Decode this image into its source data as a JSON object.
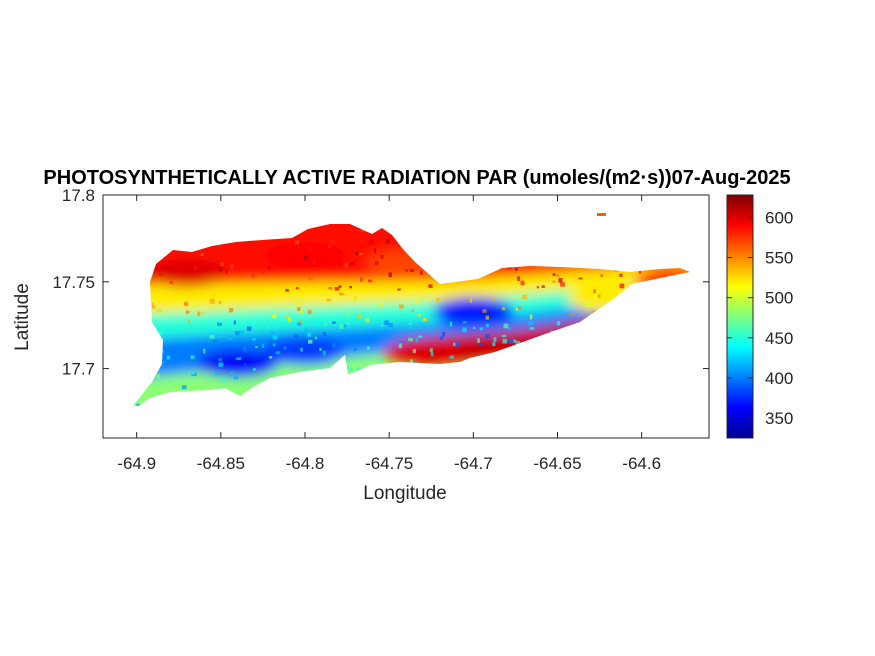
{
  "chart_data": {
    "type": "heatmap",
    "title": "PHOTOSYNTHETICALLY ACTIVE RADIATION PAR (umoles/(m2·s))07-Aug-2025",
    "xlabel": "Longitude",
    "ylabel": "Latitude",
    "xlim": [
      -64.92,
      -64.56
    ],
    "ylim": [
      17.66,
      17.8
    ],
    "xticks": [
      -64.9,
      -64.85,
      -64.8,
      -64.75,
      -64.7,
      -64.65,
      -64.6
    ],
    "xtick_labels": [
      "-64.9",
      "-64.85",
      "-64.8",
      "-64.75",
      "-64.7",
      "-64.65",
      "-64.6"
    ],
    "yticks": [
      17.7,
      17.75,
      17.8
    ],
    "ytick_labels": [
      "17.7",
      "17.75",
      "17.8"
    ],
    "colorbar": {
      "colormap": "jet",
      "range": [
        325,
        628
      ],
      "ticks": [
        350,
        400,
        450,
        500,
        550,
        600
      ],
      "tick_labels": [
        "350",
        "400",
        "450",
        "500",
        "550",
        "600"
      ]
    },
    "grid": false,
    "regions": [
      {
        "lon": -64.87,
        "lat": 17.755,
        "value": 600
      },
      {
        "lon": -64.8,
        "lat": 17.765,
        "value": 590
      },
      {
        "lon": -64.74,
        "lat": 17.76,
        "value": 570
      },
      {
        "lon": -64.84,
        "lat": 17.703,
        "value": 360
      },
      {
        "lon": -64.8,
        "lat": 17.71,
        "value": 380
      },
      {
        "lon": -64.7,
        "lat": 17.733,
        "value": 370
      },
      {
        "lon": -64.73,
        "lat": 17.708,
        "value": 600
      },
      {
        "lon": -64.62,
        "lat": 17.74,
        "value": 520
      },
      {
        "lon": -64.58,
        "lat": 17.75,
        "value": 580
      }
    ]
  }
}
